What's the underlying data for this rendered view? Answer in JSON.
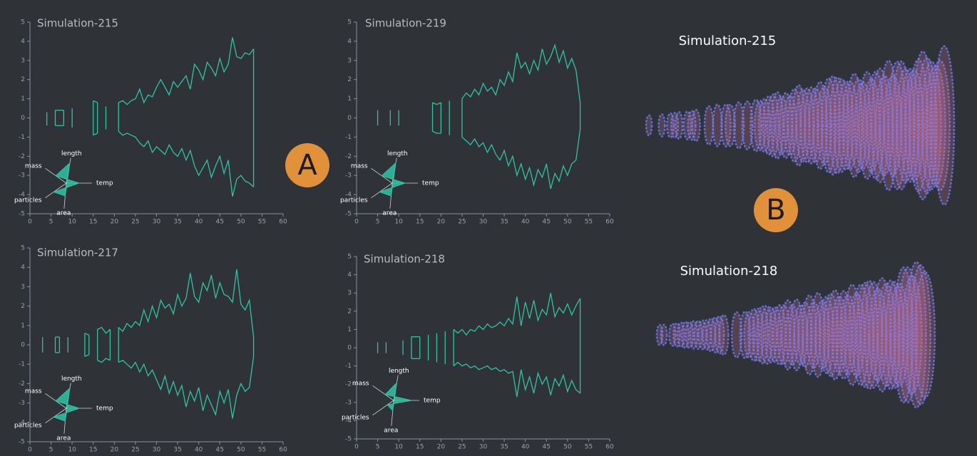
{
  "chart_data": [
    {
      "type": "line",
      "title": "Simulation-215",
      "x": [
        3,
        4,
        5,
        6,
        7,
        8,
        9,
        10,
        11,
        12,
        13,
        14,
        15,
        16,
        17,
        18,
        19,
        20,
        21,
        22,
        23,
        24,
        25,
        26,
        27,
        28,
        29,
        30,
        31,
        32,
        33,
        34,
        35,
        36,
        37,
        38,
        39,
        40,
        41,
        42,
        43,
        44,
        45,
        46,
        47,
        48,
        49,
        50,
        51,
        52,
        53
      ],
      "series": [
        {
          "color": "#2ec4a4",
          "values": [
            null,
            0.3,
            null,
            0.4,
            0.4,
            0.4,
            null,
            0.5,
            null,
            null,
            null,
            null,
            0.9,
            0.8,
            null,
            0.6,
            null,
            null,
            0.8,
            0.9,
            0.7,
            0.9,
            1.0,
            1.5,
            0.8,
            1.2,
            1.1,
            1.6,
            2.0,
            1.6,
            1.2,
            1.9,
            1.6,
            1.9,
            2.2,
            1.5,
            2.8,
            2.5,
            2.0,
            2.9,
            2.6,
            2.2,
            3.1,
            2.4,
            2.8,
            4.2,
            3.2,
            3.1,
            3.4,
            3.3,
            3.6
          ]
        },
        {
          "color": "#2ec4a4",
          "values": [
            null,
            -0.4,
            null,
            -0.4,
            -0.4,
            -0.4,
            null,
            -0.5,
            null,
            null,
            null,
            null,
            -0.9,
            -0.8,
            null,
            -0.6,
            null,
            null,
            -0.7,
            -0.9,
            -0.8,
            -0.9,
            -1.0,
            -1.3,
            -1.5,
            -1.2,
            -1.8,
            -1.5,
            -1.7,
            -1.9,
            -1.4,
            -1.8,
            -2.0,
            -1.6,
            -2.2,
            -1.7,
            -2.5,
            -3.0,
            -2.6,
            -2.2,
            -3.1,
            -2.5,
            -2.0,
            -2.9,
            -2.2,
            -4.1,
            -3.2,
            -3.0,
            -3.3,
            -3.4,
            -3.6
          ]
        }
      ],
      "xlim": [
        0,
        60
      ],
      "xticks": [
        0,
        5,
        10,
        15,
        20,
        25,
        30,
        35,
        40,
        45,
        50,
        55,
        60
      ],
      "ylim": [
        -5,
        5
      ],
      "yticks": [
        -5,
        -4,
        -3,
        -2,
        -1,
        0,
        1,
        2,
        3,
        4,
        5
      ],
      "glyph": {
        "labels": [
          "length",
          "mass",
          "temp",
          "particles",
          "area"
        ],
        "values": [
          0.8,
          0.5,
          0.5,
          0.6,
          0.5
        ],
        "color": "#2ec4a4"
      }
    },
    {
      "type": "line",
      "title": "Simulation-219",
      "x": [
        3,
        4,
        5,
        6,
        7,
        8,
        9,
        10,
        11,
        12,
        13,
        14,
        15,
        16,
        17,
        18,
        19,
        20,
        21,
        22,
        23,
        24,
        25,
        26,
        27,
        28,
        29,
        30,
        31,
        32,
        33,
        34,
        35,
        36,
        37,
        38,
        39,
        40,
        41,
        42,
        43,
        44,
        45,
        46,
        47,
        48,
        49,
        50,
        51,
        52,
        53
      ],
      "series": [
        {
          "color": "#2ec4a4",
          "values": [
            null,
            null,
            0.4,
            null,
            null,
            0.4,
            null,
            0.4,
            null,
            null,
            null,
            null,
            null,
            null,
            null,
            0.8,
            0.7,
            0.8,
            null,
            0.9,
            null,
            null,
            1.0,
            1.3,
            1.1,
            1.5,
            1.2,
            1.8,
            1.4,
            1.6,
            1.2,
            2.0,
            1.7,
            2.4,
            1.9,
            3.4,
            2.6,
            2.9,
            2.3,
            3.0,
            2.5,
            3.6,
            2.8,
            3.2,
            3.8,
            2.9,
            3.5,
            2.6,
            3.1,
            2.5,
            0.8
          ]
        },
        {
          "color": "#2ec4a4",
          "values": [
            null,
            null,
            -0.4,
            null,
            null,
            -0.4,
            null,
            -0.4,
            null,
            null,
            null,
            null,
            null,
            null,
            null,
            -0.7,
            -0.8,
            -0.8,
            null,
            -0.9,
            null,
            null,
            -1.0,
            -1.2,
            -1.4,
            -1.1,
            -1.5,
            -1.3,
            -1.8,
            -1.4,
            -1.9,
            -2.2,
            -1.7,
            -2.5,
            -2.0,
            -3.0,
            -2.4,
            -3.2,
            -2.6,
            -3.5,
            -2.7,
            -3.1,
            -2.4,
            -3.7,
            -2.9,
            -3.3,
            -2.5,
            -3.0,
            -2.4,
            -2.2,
            -0.6
          ]
        }
      ],
      "xlim": [
        0,
        60
      ],
      "xticks": [
        0,
        5,
        10,
        15,
        20,
        25,
        30,
        35,
        40,
        45,
        50,
        55,
        60
      ],
      "ylim": [
        -5,
        5
      ],
      "yticks": [
        -5,
        -4,
        -3,
        -2,
        -1,
        0,
        1,
        2,
        3,
        4,
        5
      ],
      "glyph": {
        "labels": [
          "length",
          "mass",
          "temp",
          "particles",
          "area"
        ],
        "values": [
          0.8,
          0.5,
          0.5,
          0.6,
          0.5
        ],
        "color": "#2ec4a4"
      }
    },
    {
      "type": "line",
      "title": "Simulation-217",
      "x": [
        3,
        4,
        5,
        6,
        7,
        8,
        9,
        10,
        11,
        12,
        13,
        14,
        15,
        16,
        17,
        18,
        19,
        20,
        21,
        22,
        23,
        24,
        25,
        26,
        27,
        28,
        29,
        30,
        31,
        32,
        33,
        34,
        35,
        36,
        37,
        38,
        39,
        40,
        41,
        42,
        43,
        44,
        45,
        46,
        47,
        48,
        49,
        50,
        51,
        52,
        53
      ],
      "series": [
        {
          "color": "#2ec4a4",
          "values": [
            0.4,
            null,
            null,
            0.4,
            0.4,
            null,
            0.4,
            null,
            null,
            null,
            0.6,
            0.5,
            null,
            0.8,
            0.9,
            0.6,
            0.8,
            null,
            0.9,
            0.7,
            1.1,
            0.9,
            1.2,
            1.0,
            1.8,
            1.2,
            2.0,
            1.4,
            2.3,
            1.9,
            2.1,
            1.6,
            2.6,
            2.0,
            2.4,
            3.7,
            2.5,
            2.2,
            3.2,
            2.8,
            3.6,
            2.4,
            3.2,
            2.6,
            2.5,
            2.2,
            3.9,
            2.1,
            1.8,
            2.3,
            0.4
          ]
        },
        {
          "color": "#2ec4a4",
          "values": [
            -0.4,
            null,
            null,
            -0.4,
            -0.4,
            null,
            -0.4,
            null,
            null,
            null,
            -0.6,
            -0.5,
            null,
            -0.8,
            -0.9,
            -0.7,
            -0.8,
            null,
            -0.9,
            -0.8,
            -1.0,
            -1.2,
            -0.9,
            -1.4,
            -1.0,
            -1.6,
            -1.3,
            -1.8,
            -2.3,
            -1.6,
            -2.5,
            -1.9,
            -2.6,
            -2.1,
            -3.2,
            -2.4,
            -2.9,
            -2.2,
            -3.4,
            -2.6,
            -3.1,
            -3.6,
            -2.4,
            -3.0,
            -2.3,
            -3.8,
            -2.6,
            -2.0,
            -2.4,
            -2.2,
            -0.6
          ]
        }
      ],
      "xlim": [
        0,
        60
      ],
      "xticks": [
        0,
        5,
        10,
        15,
        20,
        25,
        30,
        35,
        40,
        45,
        50,
        55,
        60
      ],
      "ylim": [
        -5,
        5
      ],
      "yticks": [
        -5,
        -4,
        -3,
        -2,
        -1,
        0,
        1,
        2,
        3,
        4,
        5
      ],
      "glyph": {
        "labels": [
          "length",
          "mass",
          "temp",
          "particles",
          "area"
        ],
        "values": [
          0.8,
          0.5,
          0.5,
          0.6,
          0.5
        ],
        "color": "#2ec4a4"
      }
    },
    {
      "type": "line",
      "title": "Simulation-218",
      "x": [
        3,
        4,
        5,
        6,
        7,
        8,
        9,
        10,
        11,
        12,
        13,
        14,
        15,
        16,
        17,
        18,
        19,
        20,
        21,
        22,
        23,
        24,
        25,
        26,
        27,
        28,
        29,
        30,
        31,
        32,
        33,
        34,
        35,
        36,
        37,
        38,
        39,
        40,
        41,
        42,
        43,
        44,
        45,
        46,
        47,
        48,
        49,
        50,
        51,
        52,
        53
      ],
      "series": [
        {
          "color": "#2ec4a4",
          "values": [
            null,
            null,
            0.3,
            null,
            0.3,
            null,
            null,
            null,
            0.4,
            null,
            0.6,
            0.6,
            0.6,
            null,
            0.7,
            null,
            0.8,
            null,
            0.9,
            null,
            1.0,
            0.8,
            1.0,
            0.7,
            1.0,
            0.9,
            1.2,
            1.0,
            1.3,
            1.1,
            1.2,
            1.4,
            1.2,
            1.6,
            1.3,
            2.8,
            1.2,
            2.5,
            1.6,
            2.6,
            1.5,
            2.1,
            1.8,
            3.0,
            1.7,
            2.2,
            1.9,
            2.4,
            1.8,
            2.3,
            2.7
          ]
        },
        {
          "color": "#2ec4a4",
          "values": [
            null,
            null,
            -0.3,
            null,
            -0.3,
            null,
            null,
            null,
            -0.4,
            null,
            -0.6,
            -0.6,
            -0.6,
            null,
            -0.7,
            null,
            -0.8,
            null,
            -0.9,
            null,
            -1.0,
            -0.8,
            -1.0,
            -0.9,
            -1.1,
            -1.0,
            -1.2,
            -1.1,
            -1.0,
            -1.2,
            -1.1,
            -1.3,
            -1.2,
            -1.4,
            -1.3,
            -2.7,
            -1.2,
            -2.3,
            -1.6,
            -2.5,
            -1.4,
            -2.0,
            -1.6,
            -2.6,
            -1.7,
            -2.1,
            -1.5,
            -2.4,
            -1.8,
            -2.3,
            -2.5
          ]
        }
      ],
      "xlim": [
        0,
        60
      ],
      "xticks": [
        0,
        5,
        10,
        15,
        20,
        25,
        30,
        35,
        40,
        45,
        50,
        55,
        60
      ],
      "ylim": [
        -5,
        5
      ],
      "yticks": [
        -5,
        -4,
        -3,
        -2,
        -1,
        0,
        1,
        2,
        3,
        4,
        5
      ],
      "glyph": {
        "labels": [
          "length",
          "mass",
          "temp",
          "particles",
          "area"
        ],
        "values": [
          0.7,
          0.4,
          0.7,
          0.3,
          0.4
        ],
        "color": "#2ec4a4"
      }
    }
  ],
  "views": [
    {
      "title": "Simulation-215"
    },
    {
      "title": "Simulation-218"
    }
  ],
  "markers": [
    "A",
    "B"
  ]
}
